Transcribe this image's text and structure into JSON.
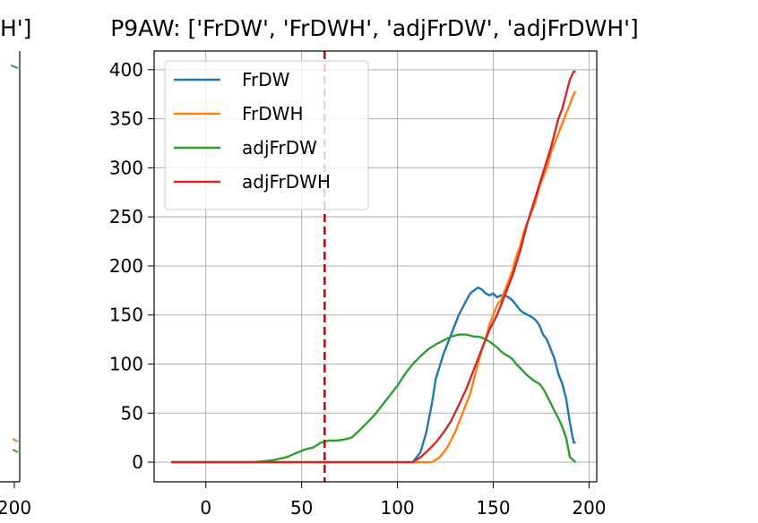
{
  "chart_data": [
    {
      "type": "line",
      "title": "H']",
      "partial": true,
      "x_tick_labels": [
        "200"
      ],
      "series": []
    },
    {
      "type": "line",
      "title": "P9AW: ['FrDW', 'FrDWH', 'adjFrDW', 'adjFrDWH']",
      "xlabel": "",
      "ylabel": "",
      "xlim": [
        -27,
        204
      ],
      "ylim": [
        -20,
        419
      ],
      "xticks": [
        0,
        50,
        100,
        150,
        200
      ],
      "yticks": [
        0,
        50,
        100,
        150,
        200,
        250,
        300,
        350,
        400
      ],
      "grid": true,
      "legend_position": "upper-left",
      "vline": {
        "x": 62,
        "color": "#e00000",
        "style": "dashed"
      },
      "series": [
        {
          "name": "FrDW",
          "color": "#1f77b4",
          "points": [
            [
              -18,
              0
            ],
            [
              108,
              0
            ],
            [
              112,
              10
            ],
            [
              115,
              30
            ],
            [
              118,
              60
            ],
            [
              120,
              85
            ],
            [
              124,
              110
            ],
            [
              128,
              130
            ],
            [
              132,
              150
            ],
            [
              136,
              165
            ],
            [
              138,
              172
            ],
            [
              140,
              175
            ],
            [
              142,
              178
            ],
            [
              144,
              176
            ],
            [
              146,
              172
            ],
            [
              148,
              170
            ],
            [
              150,
              172
            ],
            [
              152,
              168
            ],
            [
              154,
              170
            ],
            [
              156,
              170
            ],
            [
              158,
              168
            ],
            [
              160,
              165
            ],
            [
              162,
              160
            ],
            [
              164,
              155
            ],
            [
              166,
              152
            ],
            [
              168,
              150
            ],
            [
              170,
              148
            ],
            [
              172,
              145
            ],
            [
              174,
              140
            ],
            [
              176,
              130
            ],
            [
              178,
              125
            ],
            [
              180,
              115
            ],
            [
              182,
              105
            ],
            [
              184,
              90
            ],
            [
              186,
              80
            ],
            [
              188,
              65
            ],
            [
              190,
              40
            ],
            [
              192,
              20
            ],
            [
              193,
              20
            ]
          ]
        },
        {
          "name": "FrDWH",
          "color": "#ff7f0e",
          "points": [
            [
              -18,
              0
            ],
            [
              118,
              0
            ],
            [
              122,
              5
            ],
            [
              126,
              15
            ],
            [
              130,
              30
            ],
            [
              134,
              50
            ],
            [
              138,
              70
            ],
            [
              140,
              85
            ],
            [
              142,
              100
            ],
            [
              144,
              115
            ],
            [
              146,
              125
            ],
            [
              148,
              140
            ],
            [
              150,
              150
            ],
            [
              152,
              160
            ],
            [
              154,
              165
            ],
            [
              156,
              175
            ],
            [
              158,
              185
            ],
            [
              160,
              195
            ],
            [
              162,
              210
            ],
            [
              164,
              220
            ],
            [
              166,
              235
            ],
            [
              168,
              245
            ],
            [
              170,
              255
            ],
            [
              172,
              265
            ],
            [
              174,
              280
            ],
            [
              176,
              290
            ],
            [
              178,
              300
            ],
            [
              180,
              315
            ],
            [
              182,
              325
            ],
            [
              184,
              335
            ],
            [
              186,
              345
            ],
            [
              188,
              355
            ],
            [
              190,
              365
            ],
            [
              192,
              375
            ],
            [
              193,
              378
            ]
          ]
        },
        {
          "name": "adjFrDW",
          "color": "#2ca02c",
          "points": [
            [
              -18,
              0
            ],
            [
              25,
              0
            ],
            [
              35,
              2
            ],
            [
              42,
              5
            ],
            [
              48,
              10
            ],
            [
              52,
              13
            ],
            [
              56,
              15
            ],
            [
              60,
              20
            ],
            [
              64,
              22
            ],
            [
              68,
              22
            ],
            [
              72,
              23
            ],
            [
              76,
              25
            ],
            [
              80,
              32
            ],
            [
              84,
              40
            ],
            [
              88,
              48
            ],
            [
              92,
              58
            ],
            [
              96,
              68
            ],
            [
              100,
              78
            ],
            [
              104,
              90
            ],
            [
              108,
              100
            ],
            [
              112,
              108
            ],
            [
              116,
              115
            ],
            [
              120,
              120
            ],
            [
              124,
              124
            ],
            [
              128,
              128
            ],
            [
              132,
              130
            ],
            [
              136,
              130
            ],
            [
              140,
              128
            ],
            [
              142,
              128
            ],
            [
              144,
              127
            ],
            [
              146,
              125
            ],
            [
              148,
              123
            ],
            [
              150,
              120
            ],
            [
              152,
              117
            ],
            [
              154,
              113
            ],
            [
              156,
              110
            ],
            [
              158,
              108
            ],
            [
              160,
              105
            ],
            [
              162,
              100
            ],
            [
              164,
              96
            ],
            [
              166,
              92
            ],
            [
              168,
              88
            ],
            [
              170,
              85
            ],
            [
              172,
              82
            ],
            [
              174,
              80
            ],
            [
              176,
              75
            ],
            [
              178,
              68
            ],
            [
              180,
              60
            ],
            [
              182,
              52
            ],
            [
              184,
              45
            ],
            [
              186,
              36
            ],
            [
              188,
              25
            ],
            [
              190,
              5
            ],
            [
              193,
              0
            ]
          ]
        },
        {
          "name": "adjFrDWH",
          "color": "#d62728",
          "points": [
            [
              -18,
              0
            ],
            [
              108,
              0
            ],
            [
              112,
              5
            ],
            [
              116,
              12
            ],
            [
              120,
              20
            ],
            [
              124,
              30
            ],
            [
              128,
              42
            ],
            [
              132,
              58
            ],
            [
              136,
              75
            ],
            [
              140,
              95
            ],
            [
              144,
              115
            ],
            [
              148,
              135
            ],
            [
              152,
              150
            ],
            [
              156,
              170
            ],
            [
              160,
              190
            ],
            [
              164,
              215
            ],
            [
              168,
              245
            ],
            [
              172,
              270
            ],
            [
              176,
              295
            ],
            [
              180,
              320
            ],
            [
              184,
              350
            ],
            [
              186,
              360
            ],
            [
              188,
              375
            ],
            [
              190,
              390
            ],
            [
              192,
              398
            ],
            [
              193,
              398
            ]
          ]
        }
      ]
    }
  ]
}
